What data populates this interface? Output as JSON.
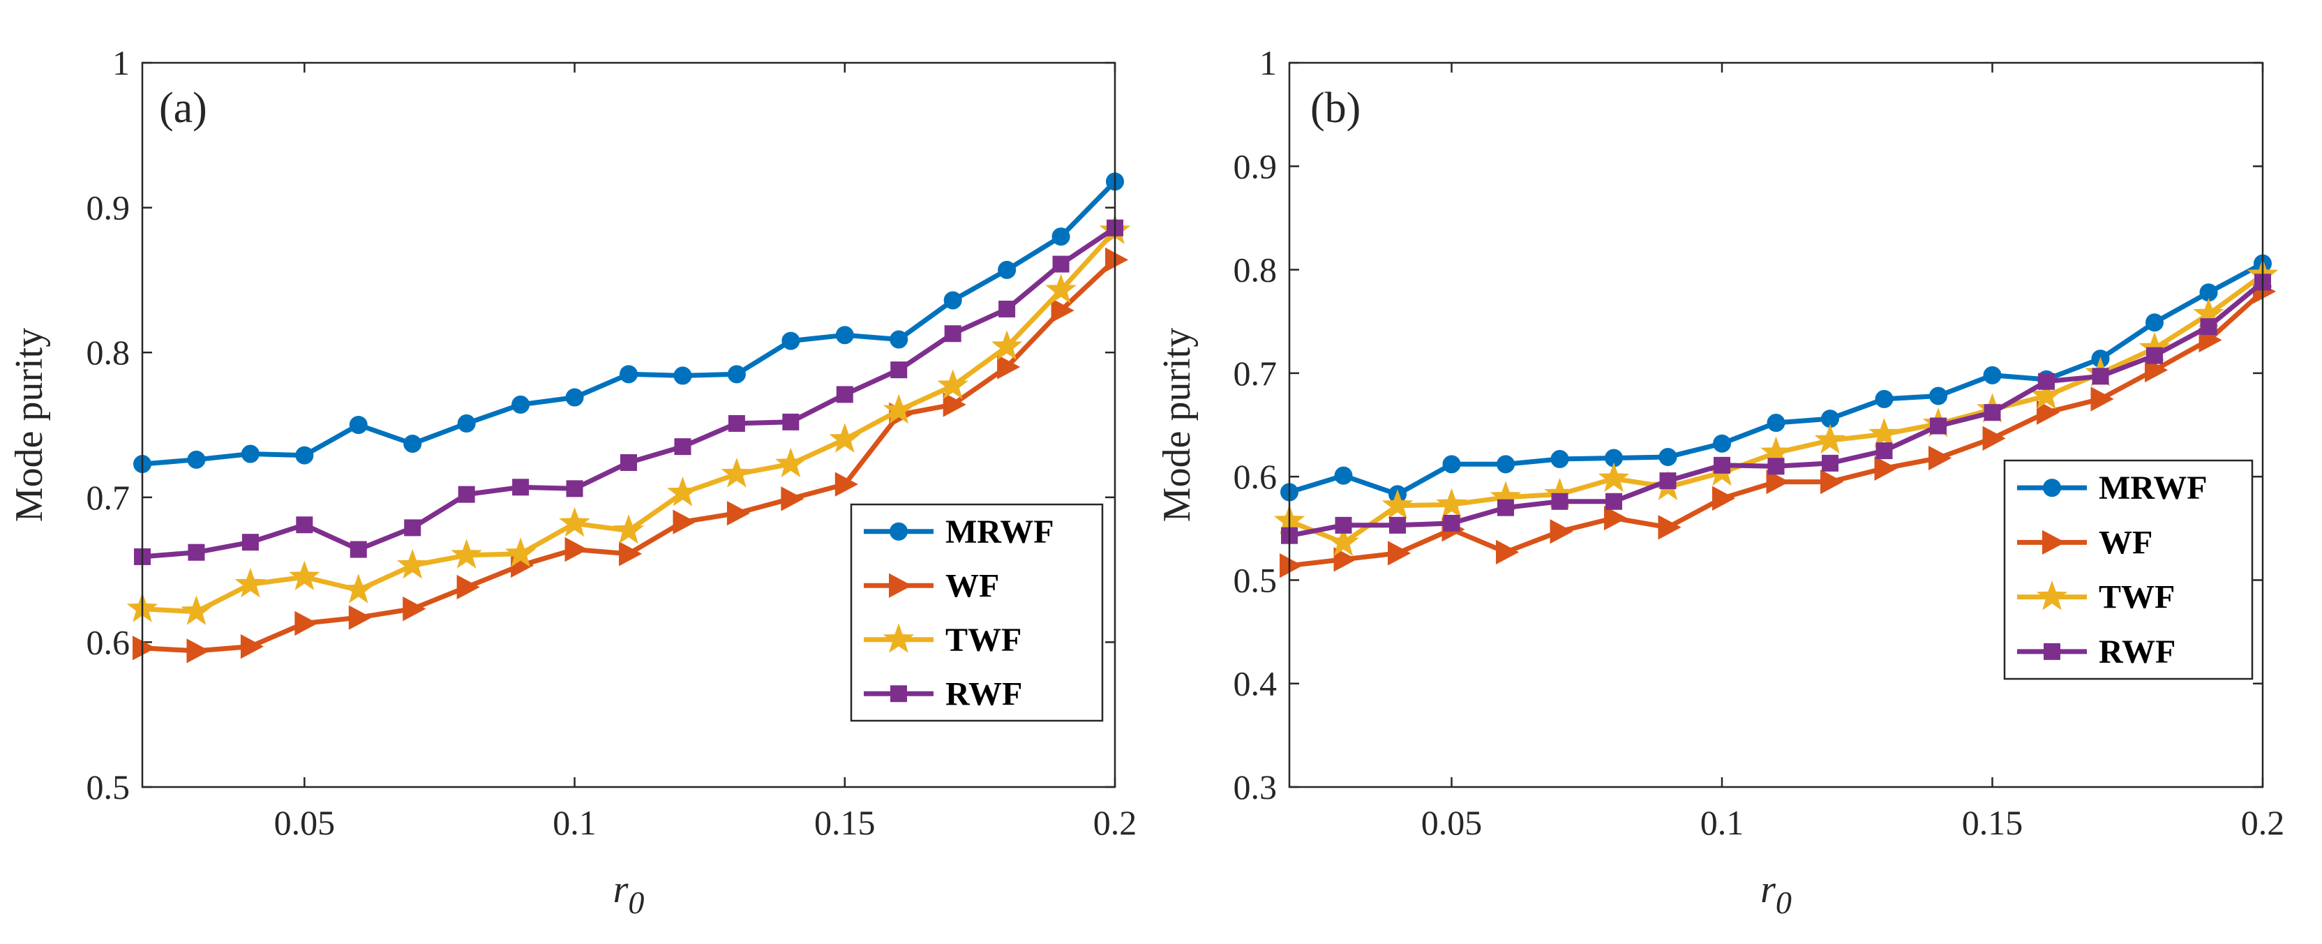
{
  "chart_data": [
    {
      "type": "line",
      "panel_label": "(a)",
      "xlabel": "r",
      "xlabel_subscript": "0",
      "ylabel": "Mode purity",
      "xlim": [
        0.02,
        0.2
      ],
      "ylim": [
        0.5,
        1.0
      ],
      "xticks": [
        0.05,
        0.1,
        0.15,
        0.2
      ],
      "xtick_labels": [
        "0.05",
        "0.1",
        "0.15",
        "0.2"
      ],
      "yticks": [
        0.5,
        0.6,
        0.7,
        0.8,
        0.9,
        1.0
      ],
      "ytick_labels": [
        "0.5",
        "0.6",
        "0.7",
        "0.8",
        "0.9",
        "1"
      ],
      "legend_position": "lower-right",
      "x": [
        0.02,
        0.03,
        0.04,
        0.05,
        0.06,
        0.07,
        0.08,
        0.09,
        0.1,
        0.11,
        0.12,
        0.13,
        0.14,
        0.15,
        0.16,
        0.17,
        0.18,
        0.19,
        0.2
      ],
      "series": [
        {
          "name": "MRWF",
          "color": "#0072BD",
          "marker": "circle",
          "values": [
            0.723,
            0.726,
            0.73,
            0.729,
            0.75,
            0.737,
            0.751,
            0.764,
            0.769,
            0.785,
            0.784,
            0.785,
            0.808,
            0.812,
            0.809,
            0.836,
            0.857,
            0.88,
            0.918
          ]
        },
        {
          "name": "WF",
          "color": "#D95319",
          "marker": "triangle-right",
          "values": [
            0.596,
            0.594,
            0.597,
            0.613,
            0.617,
            0.623,
            0.638,
            0.653,
            0.664,
            0.661,
            0.683,
            0.689,
            0.699,
            0.709,
            0.757,
            0.764,
            0.79,
            0.829,
            0.864
          ]
        },
        {
          "name": "TWF",
          "color": "#EDB120",
          "marker": "star",
          "values": [
            0.623,
            0.621,
            0.64,
            0.645,
            0.636,
            0.653,
            0.66,
            0.661,
            0.682,
            0.677,
            0.703,
            0.716,
            0.723,
            0.74,
            0.76,
            0.777,
            0.804,
            0.843,
            0.884
          ]
        },
        {
          "name": "RWF",
          "color": "#7E2F8E",
          "marker": "square",
          "values": [
            0.659,
            0.662,
            0.669,
            0.681,
            0.664,
            0.679,
            0.702,
            0.707,
            0.706,
            0.724,
            0.735,
            0.751,
            0.752,
            0.771,
            0.788,
            0.813,
            0.83,
            0.861,
            0.886
          ]
        }
      ]
    },
    {
      "type": "line",
      "panel_label": "(b)",
      "xlabel": "r",
      "xlabel_subscript": "0",
      "ylabel": "Mode purity",
      "xlim": [
        0.02,
        0.2
      ],
      "ylim": [
        0.3,
        1.0
      ],
      "xticks": [
        0.05,
        0.1,
        0.15,
        0.2
      ],
      "xtick_labels": [
        "0.05",
        "0.1",
        "0.15",
        "0.2"
      ],
      "yticks": [
        0.3,
        0.4,
        0.5,
        0.6,
        0.7,
        0.8,
        0.9,
        1.0
      ],
      "ytick_labels": [
        "0.3",
        "0.4",
        "0.5",
        "0.6",
        "0.7",
        "0.8",
        "0.9",
        "1"
      ],
      "legend_position": "lower-right",
      "x": [
        0.02,
        0.03,
        0.04,
        0.05,
        0.06,
        0.07,
        0.08,
        0.09,
        0.1,
        0.11,
        0.12,
        0.13,
        0.14,
        0.15,
        0.16,
        0.17,
        0.18,
        0.19,
        0.2
      ],
      "series": [
        {
          "name": "MRWF",
          "color": "#0072BD",
          "marker": "circle",
          "values": [
            0.585,
            0.601,
            0.583,
            0.612,
            0.612,
            0.617,
            0.618,
            0.619,
            0.632,
            0.652,
            0.656,
            0.675,
            0.678,
            0.698,
            0.694,
            0.714,
            0.749,
            0.778,
            0.806
          ]
        },
        {
          "name": "WF",
          "color": "#D95319",
          "marker": "triangle-right",
          "values": [
            0.514,
            0.52,
            0.526,
            0.549,
            0.527,
            0.547,
            0.56,
            0.551,
            0.579,
            0.595,
            0.595,
            0.608,
            0.618,
            0.637,
            0.662,
            0.675,
            0.703,
            0.732,
            0.779
          ]
        },
        {
          "name": "TWF",
          "color": "#EDB120",
          "marker": "star",
          "values": [
            0.557,
            0.536,
            0.572,
            0.573,
            0.58,
            0.583,
            0.598,
            0.59,
            0.604,
            0.623,
            0.635,
            0.641,
            0.651,
            0.665,
            0.678,
            0.7,
            0.724,
            0.757,
            0.795
          ]
        },
        {
          "name": "RWF",
          "color": "#7E2F8E",
          "marker": "square",
          "values": [
            0.543,
            0.553,
            0.553,
            0.555,
            0.57,
            0.576,
            0.576,
            0.596,
            0.611,
            0.61,
            0.613,
            0.625,
            0.649,
            0.662,
            0.692,
            0.697,
            0.717,
            0.745,
            0.788
          ]
        }
      ]
    }
  ]
}
